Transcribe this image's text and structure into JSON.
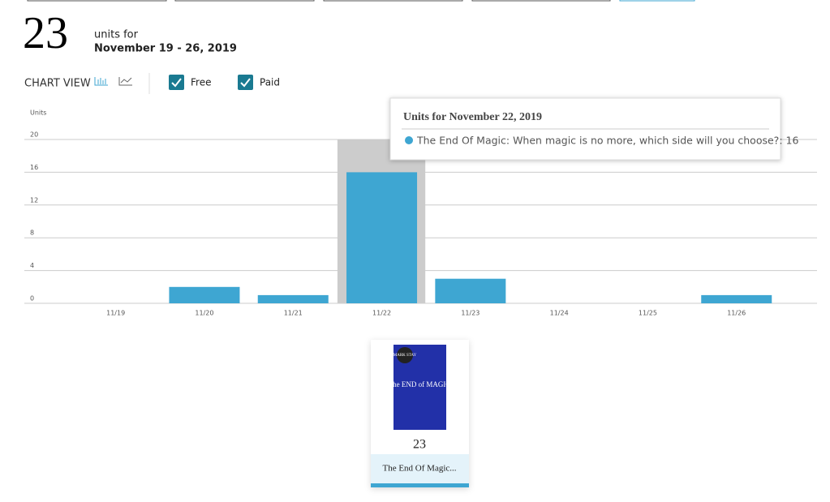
{
  "summary": {
    "total": "23",
    "units_for": "units for",
    "range": "November 19 - 26, 2019"
  },
  "controls": {
    "chart_view": "CHART VIEW",
    "free": "Free",
    "paid": "Paid"
  },
  "chart_data": {
    "type": "bar",
    "y_label": "Units",
    "categories": [
      "11/19",
      "11/20",
      "11/21",
      "11/22",
      "11/23",
      "11/24",
      "11/25",
      "11/26"
    ],
    "values": [
      0,
      2,
      1,
      16,
      3,
      0,
      0,
      1
    ],
    "color": "#3ea6d2",
    "ylim": [
      0,
      20
    ],
    "yticks": [
      0,
      4,
      8,
      12,
      16,
      20
    ],
    "grid": true,
    "highlight_index": 3
  },
  "tooltip": {
    "title": "Units for November 22, 2019",
    "text": "The End Of Magic: When magic is no more, which side will you choose?: 16"
  },
  "book": {
    "cover_author": "MARK STAY",
    "cover_title": "The END of MAGIC",
    "units": "23",
    "title": "The End Of Magic..."
  }
}
